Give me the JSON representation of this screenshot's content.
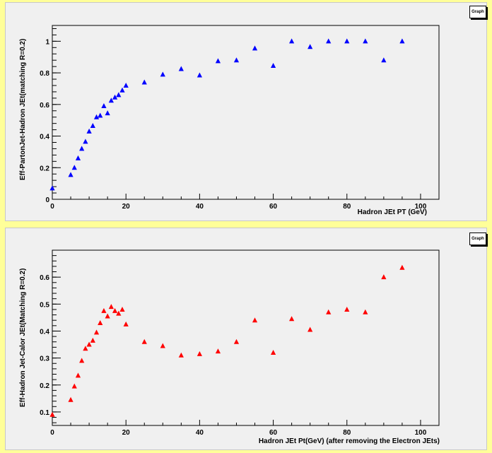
{
  "chart_data": [
    {
      "type": "scatter",
      "title": "",
      "legend_label": "Graph",
      "xlabel": "Hadron JEt PT (GeV)",
      "ylabel": "Eff-PartonJet-Hadron JEt(matching R=0.2)",
      "xlim": [
        0,
        105
      ],
      "ylim": [
        0,
        1.1
      ],
      "xticks": [
        0,
        20,
        40,
        60,
        80,
        100
      ],
      "yticks": [
        0,
        0.2,
        0.4,
        0.6,
        0.8,
        1
      ],
      "color": "#0000ff",
      "marker": "triangle",
      "series": [
        {
          "x": [
            0,
            5,
            6,
            7,
            8,
            9,
            10,
            11,
            12,
            13,
            14,
            15,
            16,
            17,
            18,
            19,
            20,
            25,
            30,
            35,
            40,
            45,
            50,
            55,
            60,
            65,
            70,
            75,
            80,
            85,
            90,
            95
          ],
          "y": [
            0.07,
            0.155,
            0.2,
            0.26,
            0.32,
            0.365,
            0.43,
            0.465,
            0.52,
            0.53,
            0.59,
            0.545,
            0.625,
            0.645,
            0.66,
            0.69,
            0.72,
            0.74,
            0.79,
            0.825,
            0.785,
            0.875,
            0.88,
            0.955,
            0.845,
            1.0,
            0.965,
            1.0,
            1.0,
            1.0,
            0.88,
            1.0
          ]
        }
      ]
    },
    {
      "type": "scatter",
      "title": "",
      "legend_label": "Graph",
      "xlabel": "Hadron JEt Pt(GeV) (after removing the Electron JEts)",
      "ylabel": "Eff-Hadron Jet-Calor JEt(Matching R=0.2)",
      "xlim": [
        0,
        105
      ],
      "ylim": [
        0.05,
        0.7
      ],
      "xticks": [
        0,
        20,
        40,
        60,
        80,
        100
      ],
      "yticks": [
        0.1,
        0.2,
        0.3,
        0.4,
        0.5,
        0.6
      ],
      "color": "#ff0000",
      "marker": "triangle",
      "series": [
        {
          "x": [
            0,
            5,
            6,
            7,
            8,
            9,
            10,
            11,
            12,
            13,
            14,
            15,
            16,
            17,
            18,
            19,
            20,
            25,
            30,
            35,
            40,
            45,
            50,
            55,
            60,
            65,
            70,
            75,
            80,
            85,
            90,
            95
          ],
          "y": [
            0.09,
            0.145,
            0.195,
            0.235,
            0.29,
            0.335,
            0.35,
            0.365,
            0.395,
            0.43,
            0.475,
            0.455,
            0.49,
            0.475,
            0.465,
            0.48,
            0.425,
            0.36,
            0.345,
            0.31,
            0.315,
            0.325,
            0.36,
            0.44,
            0.32,
            0.445,
            0.405,
            0.47,
            0.48,
            0.47,
            0.6,
            0.635
          ]
        }
      ]
    }
  ]
}
